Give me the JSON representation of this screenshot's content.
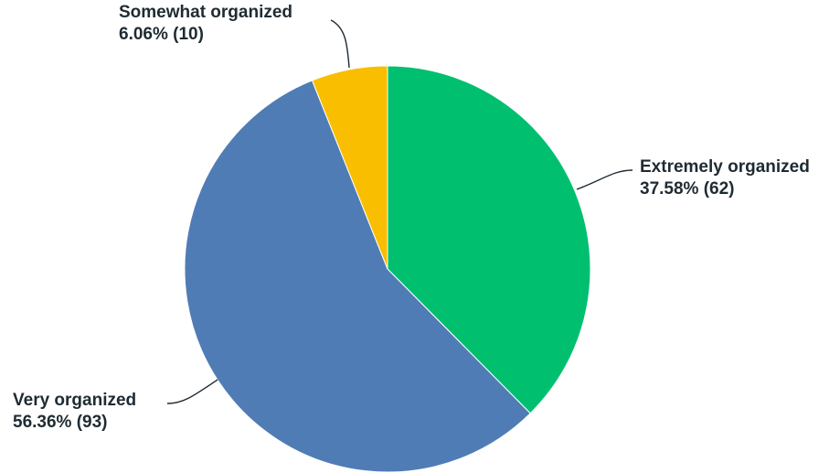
{
  "chart_data": {
    "type": "pie",
    "title": "",
    "start_angle_deg": 0,
    "direction": "clockwise",
    "slices": [
      {
        "name": "Extremely organized",
        "percent": 37.58,
        "percent_label": "37.58%",
        "count": 62,
        "count_label": "(62)",
        "color": "#00bf6f"
      },
      {
        "name": "Very organized",
        "percent": 56.36,
        "percent_label": "56.36%",
        "count": 93,
        "count_label": "(93)",
        "color": "#507cb6"
      },
      {
        "name": "Somewhat organized",
        "percent": 6.06,
        "percent_label": "6.06%",
        "count": 10,
        "count_label": "(10)",
        "color": "#f9be00"
      }
    ]
  }
}
